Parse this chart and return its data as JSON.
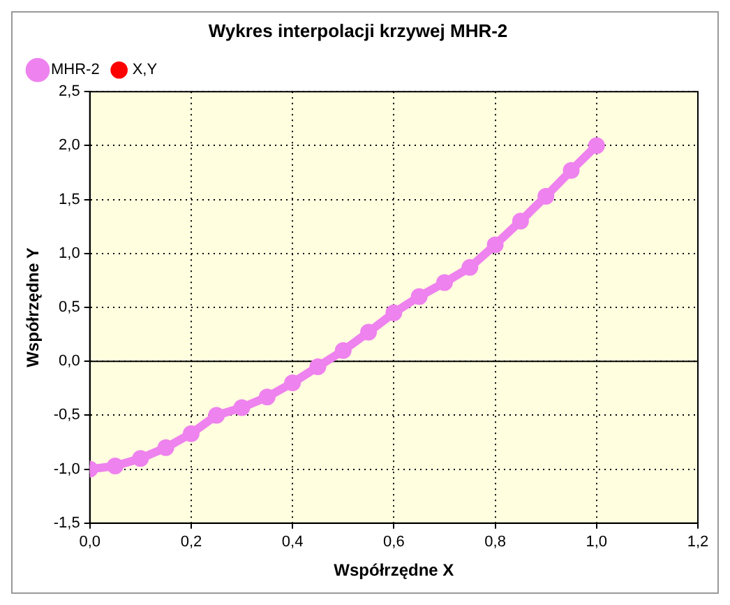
{
  "chart_data": {
    "type": "line",
    "title": "Wykres interpolacji krzywej MHR-2",
    "xlabel": "Współrzędne X",
    "ylabel": "Współrzędne Y",
    "x": [
      0,
      0.05,
      0.1,
      0.15,
      0.2,
      0.25,
      0.3,
      0.35,
      0.4,
      0.45,
      0.5,
      0.55,
      0.6,
      0.65,
      0.7,
      0.75,
      0.8,
      0.85,
      0.9,
      0.95,
      1.0
    ],
    "series": [
      {
        "name": "MHR-2",
        "color": "#ee82ee",
        "values": [
          -1.0,
          -0.97,
          -0.9,
          -0.8,
          -0.67,
          -0.5,
          -0.43,
          -0.33,
          -0.2,
          -0.05,
          0.1,
          0.27,
          0.45,
          0.6,
          0.73,
          0.87,
          1.08,
          1.3,
          1.53,
          1.77,
          2.0
        ]
      },
      {
        "name": "X,Y",
        "color": "#ff0000",
        "type": "scatter",
        "values": [
          null,
          null,
          null,
          null,
          null,
          null,
          null,
          null,
          null,
          null,
          null,
          null,
          null,
          null,
          null,
          null,
          null,
          null,
          null,
          null,
          null
        ]
      }
    ],
    "xlim": [
      0,
      1.2
    ],
    "xticks": [
      {
        "value": 0,
        "label": "0,0"
      },
      {
        "value": 0.2,
        "label": "0,2"
      },
      {
        "value": 0.4,
        "label": "0,4"
      },
      {
        "value": 0.6,
        "label": "0,6"
      },
      {
        "value": 0.8,
        "label": "0,8"
      },
      {
        "value": 1.0,
        "label": "1,0"
      },
      {
        "value": 1.2,
        "label": "1,2"
      }
    ],
    "ylim": [
      -1.5,
      2.5
    ],
    "yticks": [
      {
        "value": -1.5,
        "label": "-1,5"
      },
      {
        "value": -1,
        "label": "-1,0"
      },
      {
        "value": -0.5,
        "label": "-0,5"
      },
      {
        "value": 0,
        "label": "0,0"
      },
      {
        "value": 0.5,
        "label": "0,5"
      },
      {
        "value": 1,
        "label": "1,0"
      },
      {
        "value": 1.5,
        "label": "1,5"
      },
      {
        "value": 2,
        "label": "2,0"
      },
      {
        "value": 2.5,
        "label": "2,5"
      }
    ],
    "ref_lines": [
      {
        "axis": "y",
        "value": 0,
        "color": "#000000"
      }
    ],
    "grid": true,
    "legend": "top left",
    "marker": "circle",
    "line_style": "solid"
  }
}
